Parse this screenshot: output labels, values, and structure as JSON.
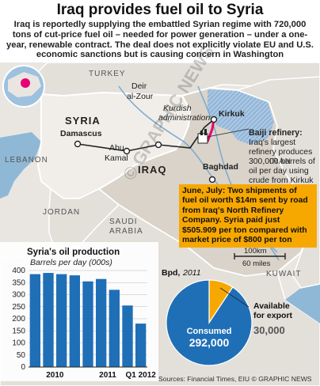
{
  "title": "Iraq provides fuel oil to Syria",
  "intro": "Iraq is reportedly supplying the embattled Syrian regime with 720,000 tons of cut-price fuel oil – needed for power generation – under a one-year, renewable contract. The deal does not explicitly violate EU and U.S. economic sanctions but is causing concern in Washington",
  "map": {
    "countries": {
      "turkey": "TURKEY",
      "syria": "SYRIA",
      "iraq": "IRAQ",
      "iran": "IRAN",
      "lebanon": "LEBANON",
      "jordan": "JORDAN",
      "saudi_arabia_1": "SAUDI",
      "saudi_arabia_2": "ARABIA",
      "kuwait": "KUWAIT"
    },
    "cities": {
      "damascus": "Damascus",
      "deir_1": "Deir",
      "deir_2": "al-Zour",
      "abu_kamal_1": "Abu",
      "abu_kamal_2": "Kamal",
      "kirkuk": "Kirkuk",
      "baghdad": "Baghdad"
    },
    "kurdish_1": "Kurdish",
    "kurdish_2": "administration",
    "baiji_title": "Baiji refinery:",
    "baiji_text": "Iraq's largest refinery produces 300,000 barrels of oil per day using crude from Kirkuk fields",
    "scale_km": "100km",
    "scale_miles": "60 miles",
    "callout_head": "June, July:",
    "callout_text": " Two shipments of fuel oil worth $14m sent by road from Iraq's North Refinery Company. Syria paid just $505.909 per ton compared with market price of $800 per ton",
    "watermark": "© GRAPHIC NEWS",
    "colors": {
      "land": "#e7e3dd",
      "iraq": "#d9d2c8",
      "syria": "#f0ede8",
      "water": "#8fb8d6",
      "orange": "#f7a800",
      "blue": "#1f6fb7"
    }
  },
  "chart_data": [
    {
      "type": "bar",
      "title": "Syria's oil production",
      "subtitle": "Barrels per day (000s)",
      "categories": [
        "2010 Q1",
        "2010 Q2",
        "2010 Q3",
        "2010 Q4",
        "2011 Q1",
        "2011 Q2",
        "2011 Q3",
        "2011 Q4",
        "2012 Q1"
      ],
      "values": [
        385,
        390,
        385,
        380,
        355,
        365,
        320,
        255,
        180
      ],
      "x_tick_labels": [
        "2010",
        "2011",
        "Q1 2012"
      ],
      "y_ticks": [
        "0",
        "50",
        "100",
        "150",
        "200",
        "250",
        "300",
        "350",
        "400"
      ],
      "ylim": [
        0,
        400
      ],
      "color": "#1f6fb7"
    },
    {
      "type": "pie",
      "title": "Bpd,",
      "year": "2011",
      "slices": [
        {
          "label": "Consumed",
          "value": 292000,
          "value_text": "292,000",
          "color": "#1f6fb7"
        },
        {
          "label_1": "Available",
          "label_2": "for export",
          "value": 30000,
          "value_text": "30,000",
          "color": "#f7a800"
        }
      ]
    }
  ],
  "source": "Sources: Financial Times, EIU © GRAPHIC NEWS"
}
